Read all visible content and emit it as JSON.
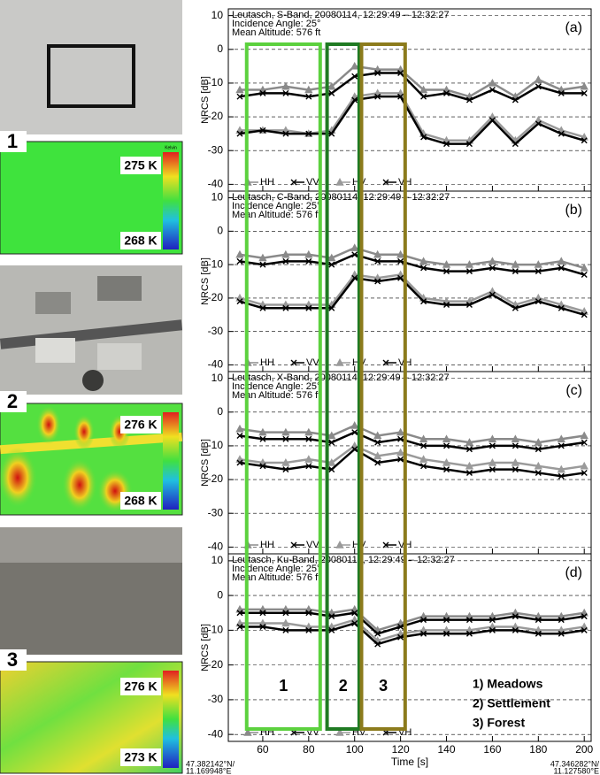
{
  "left_panels": [
    {
      "label": "1",
      "thermal_max": "275 K",
      "thermal_min": "268 K"
    },
    {
      "label": "2",
      "thermal_max": "276 K",
      "thermal_min": "268 K"
    },
    {
      "label": "3",
      "thermal_max": "276 K",
      "thermal_min": "273 K"
    }
  ],
  "colorbar_title": "Kelvin",
  "coordinates": {
    "start": [
      "47.382142°N/",
      "11.169948°E"
    ],
    "end": [
      "47.346282°N/",
      "11.127580°E"
    ]
  },
  "chart_data": [
    {
      "type": "line",
      "title_lines": [
        "Leutasch, S-Band, 20080114, 12:29:49 – 12:32:27",
        "Incidence Angle: 25°",
        "Mean Altitude: 576 ft"
      ],
      "panel_label": "(a)",
      "ylabel": "NRCS [dB]",
      "x": [
        50,
        60,
        70,
        80,
        90,
        100,
        110,
        120,
        130,
        140,
        150,
        160,
        170,
        180,
        190,
        200
      ],
      "xlim": [
        45,
        203
      ],
      "xticks": [
        60,
        80,
        100,
        120,
        140,
        160,
        180,
        200
      ],
      "ylim": [
        -42,
        12
      ],
      "yticks": [
        10,
        0,
        -10,
        -20,
        -30,
        -40
      ],
      "grid": true,
      "series": [
        {
          "name": "HH",
          "color": "#8a8a8a",
          "marker": "triangle",
          "values": [
            -12,
            -12,
            -11,
            -12,
            -11,
            -5,
            -6,
            -6,
            -12,
            -12,
            -14,
            -10,
            -14,
            -9,
            -12,
            -11
          ]
        },
        {
          "name": "VV",
          "color": "#000000",
          "marker": "cross",
          "values": [
            -14,
            -13,
            -13,
            -14,
            -13,
            -8,
            -7,
            -7,
            -14,
            -13,
            -15,
            -12,
            -15,
            -11,
            -13,
            -13
          ]
        },
        {
          "name": "HV",
          "color": "#9a9a9a",
          "marker": "triangle",
          "values": [
            -24,
            -24,
            -24,
            -25,
            -24,
            -14,
            -13,
            -13,
            -25,
            -27,
            -27,
            -20,
            -27,
            -21,
            -24,
            -26
          ]
        },
        {
          "name": "VH",
          "color": "#000000",
          "marker": "cross",
          "values": [
            -25,
            -24,
            -25,
            -25,
            -25,
            -15,
            -14,
            -14,
            -26,
            -28,
            -28,
            -21,
            -28,
            -22,
            -25,
            -27
          ]
        }
      ]
    },
    {
      "type": "line",
      "title_lines": [
        "Leutasch, C-Band, 20080114, 12:29:49 – 12:32:27",
        "Incidence Angle: 25°",
        "Mean Altitude: 576 ft"
      ],
      "panel_label": "(b)",
      "ylabel": "NRCS [dB]",
      "x": [
        50,
        60,
        70,
        80,
        90,
        100,
        110,
        120,
        130,
        140,
        150,
        160,
        170,
        180,
        190,
        200
      ],
      "xlim": [
        45,
        203
      ],
      "xticks": [
        60,
        80,
        100,
        120,
        140,
        160,
        180,
        200
      ],
      "ylim": [
        -42,
        12
      ],
      "yticks": [
        10,
        0,
        -10,
        -20,
        -30,
        -40
      ],
      "grid": true,
      "series": [
        {
          "name": "HH",
          "color": "#8a8a8a",
          "marker": "triangle",
          "values": [
            -7,
            -8,
            -7,
            -7,
            -8,
            -5,
            -7,
            -7,
            -9,
            -10,
            -10,
            -9,
            -10,
            -10,
            -9,
            -11
          ]
        },
        {
          "name": "VV",
          "color": "#000000",
          "marker": "cross",
          "values": [
            -9,
            -10,
            -9,
            -9,
            -10,
            -7,
            -9,
            -9,
            -11,
            -12,
            -12,
            -11,
            -12,
            -12,
            -11,
            -13
          ]
        },
        {
          "name": "HV",
          "color": "#9a9a9a",
          "marker": "triangle",
          "values": [
            -20,
            -22,
            -22,
            -22,
            -22,
            -13,
            -14,
            -13,
            -20,
            -21,
            -21,
            -18,
            -22,
            -20,
            -22,
            -24
          ]
        },
        {
          "name": "VH",
          "color": "#000000",
          "marker": "cross",
          "values": [
            -21,
            -23,
            -23,
            -23,
            -23,
            -14,
            -15,
            -14,
            -21,
            -22,
            -22,
            -19,
            -23,
            -21,
            -23,
            -25
          ]
        }
      ]
    },
    {
      "type": "line",
      "title_lines": [
        "Leutasch, X-Band, 20080114, 12:29:49 – 12:32:27",
        "Incidence Angle: 25°",
        "Mean Altitude: 576 ft"
      ],
      "panel_label": "(c)",
      "ylabel": "NRCS [dB]",
      "x": [
        50,
        60,
        70,
        80,
        90,
        100,
        110,
        120,
        130,
        140,
        150,
        160,
        170,
        180,
        190,
        200
      ],
      "xlim": [
        45,
        203
      ],
      "xticks": [
        60,
        80,
        100,
        120,
        140,
        160,
        180,
        200
      ],
      "ylim": [
        -42,
        12
      ],
      "yticks": [
        10,
        0,
        -10,
        -20,
        -30,
        -40
      ],
      "grid": true,
      "series": [
        {
          "name": "HH",
          "color": "#8a8a8a",
          "marker": "triangle",
          "values": [
            -5,
            -6,
            -6,
            -6,
            -7,
            -4,
            -7,
            -6,
            -8,
            -8,
            -9,
            -8,
            -8,
            -9,
            -8,
            -7
          ]
        },
        {
          "name": "VV",
          "color": "#000000",
          "marker": "cross",
          "values": [
            -7,
            -8,
            -8,
            -8,
            -9,
            -6,
            -9,
            -8,
            -10,
            -10,
            -11,
            -10,
            -10,
            -11,
            -10,
            -9
          ]
        },
        {
          "name": "HV",
          "color": "#9a9a9a",
          "marker": "triangle",
          "values": [
            -14,
            -15,
            -15,
            -14,
            -15,
            -10,
            -13,
            -12,
            -14,
            -15,
            -16,
            -15,
            -15,
            -16,
            -17,
            -16
          ]
        },
        {
          "name": "VH",
          "color": "#000000",
          "marker": "cross",
          "values": [
            -15,
            -16,
            -17,
            -16,
            -17,
            -11,
            -15,
            -14,
            -16,
            -17,
            -18,
            -17,
            -17,
            -18,
            -19,
            -18
          ]
        }
      ]
    },
    {
      "type": "line",
      "title_lines": [
        "Leutasch, Ku-Band, 20080114, 12:29:49 – 12:32:27",
        "Incidence Angle: 25°",
        "Mean Altitude: 576 ft"
      ],
      "panel_label": "(d)",
      "ylabel": "NRCS [dB]",
      "xlabel": "Time [s]",
      "x": [
        50,
        60,
        70,
        80,
        90,
        100,
        110,
        120,
        130,
        140,
        150,
        160,
        170,
        180,
        190,
        200
      ],
      "xlim": [
        45,
        203
      ],
      "xticks": [
        60,
        80,
        100,
        120,
        140,
        160,
        180,
        200
      ],
      "ylim": [
        -42,
        12
      ],
      "yticks": [
        10,
        0,
        -10,
        -20,
        -30,
        -40
      ],
      "grid": true,
      "series": [
        {
          "name": "HH",
          "color": "#8a8a8a",
          "marker": "triangle",
          "values": [
            -4,
            -4,
            -4,
            -4,
            -5,
            -4,
            -10,
            -8,
            -6,
            -6,
            -6,
            -6,
            -5,
            -6,
            -6,
            -5
          ]
        },
        {
          "name": "VV",
          "color": "#000000",
          "marker": "cross",
          "values": [
            -5,
            -5,
            -5,
            -5,
            -6,
            -5,
            -11,
            -9,
            -7,
            -7,
            -7,
            -7,
            -6,
            -7,
            -7,
            -6
          ]
        },
        {
          "name": "HV",
          "color": "#9a9a9a",
          "marker": "triangle",
          "values": [
            -8,
            -8,
            -8,
            -9,
            -9,
            -7,
            -13,
            -11,
            -10,
            -10,
            -10,
            -9,
            -9,
            -10,
            -10,
            -9
          ]
        },
        {
          "name": "VH",
          "color": "#000000",
          "marker": "cross",
          "values": [
            -9,
            -9,
            -10,
            -10,
            -10,
            -8,
            -14,
            -12,
            -11,
            -11,
            -11,
            -10,
            -10,
            -11,
            -11,
            -10
          ]
        }
      ],
      "regions": [
        {
          "label": "1",
          "x": [
            53,
            85
          ],
          "color": "#5cd13e"
        },
        {
          "label": "2",
          "x": [
            88,
            102
          ],
          "color": "#1f7a22"
        },
        {
          "label": "3",
          "x": [
            103,
            122
          ],
          "color": "#8c7b1c"
        }
      ],
      "region_legend": [
        "1) Meadows",
        "2) Settlement",
        "3) Forest"
      ]
    }
  ]
}
